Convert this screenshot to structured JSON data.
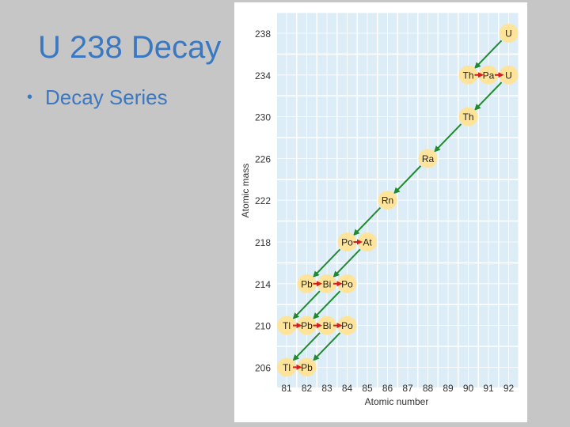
{
  "slide": {
    "title": "U 238 Decay",
    "bullets": [
      "Decay Series"
    ]
  },
  "colors": {
    "title": "#3a78c2",
    "grid_fill": "#dcedf7",
    "node_fill": "#fde49a",
    "alpha_arrow": "#1f8a2e",
    "beta_arrow": "#d42020"
  },
  "chart_data": {
    "type": "diagram",
    "xlabel": "Atomic number",
    "ylabel": "Atomic mass",
    "x_ticks": [
      "81",
      "82",
      "83",
      "84",
      "85",
      "86",
      "87",
      "88",
      "89",
      "90",
      "91",
      "92"
    ],
    "y_ticks": [
      "238",
      "234",
      "230",
      "226",
      "222",
      "218",
      "214",
      "210",
      "206"
    ],
    "grid": true,
    "nodes": [
      {
        "z": 92,
        "a": 238,
        "label": "U"
      },
      {
        "z": 90,
        "a": 234,
        "label": "Th"
      },
      {
        "z": 91,
        "a": 234,
        "label": "Pa"
      },
      {
        "z": 92,
        "a": 234,
        "label": "U"
      },
      {
        "z": 90,
        "a": 230,
        "label": "Th"
      },
      {
        "z": 88,
        "a": 226,
        "label": "Ra"
      },
      {
        "z": 86,
        "a": 222,
        "label": "Rn"
      },
      {
        "z": 84,
        "a": 218,
        "label": "Po"
      },
      {
        "z": 85,
        "a": 218,
        "label": "At"
      },
      {
        "z": 82,
        "a": 214,
        "label": "Pb"
      },
      {
        "z": 83,
        "a": 214,
        "label": "Bi"
      },
      {
        "z": 84,
        "a": 214,
        "label": "Po"
      },
      {
        "z": 81,
        "a": 210,
        "label": "Tl"
      },
      {
        "z": 82,
        "a": 210,
        "label": "Pb"
      },
      {
        "z": 83,
        "a": 210,
        "label": "Bi"
      },
      {
        "z": 84,
        "a": 210,
        "label": "Po"
      },
      {
        "z": 81,
        "a": 206,
        "label": "Tl"
      },
      {
        "z": 82,
        "a": 206,
        "label": "Pb"
      }
    ],
    "alpha_decays": [
      {
        "from": [
          92,
          238
        ],
        "to": [
          90,
          234
        ]
      },
      {
        "from": [
          92,
          234
        ],
        "to": [
          90,
          230
        ]
      },
      {
        "from": [
          90,
          230
        ],
        "to": [
          88,
          226
        ]
      },
      {
        "from": [
          88,
          226
        ],
        "to": [
          86,
          222
        ]
      },
      {
        "from": [
          86,
          222
        ],
        "to": [
          84,
          218
        ]
      },
      {
        "from": [
          84,
          218
        ],
        "to": [
          82,
          214
        ]
      },
      {
        "from": [
          85,
          218
        ],
        "to": [
          83,
          214
        ]
      },
      {
        "from": [
          83,
          214
        ],
        "to": [
          81,
          210
        ]
      },
      {
        "from": [
          84,
          214
        ],
        "to": [
          82,
          210
        ]
      },
      {
        "from": [
          83,
          210
        ],
        "to": [
          81,
          206
        ]
      },
      {
        "from": [
          84,
          210
        ],
        "to": [
          82,
          206
        ]
      }
    ],
    "beta_decays": [
      {
        "from": [
          90,
          234
        ],
        "to": [
          91,
          234
        ]
      },
      {
        "from": [
          91,
          234
        ],
        "to": [
          92,
          234
        ]
      },
      {
        "from": [
          84,
          218
        ],
        "to": [
          85,
          218
        ]
      },
      {
        "from": [
          82,
          214
        ],
        "to": [
          83,
          214
        ]
      },
      {
        "from": [
          83,
          214
        ],
        "to": [
          84,
          214
        ]
      },
      {
        "from": [
          81,
          210
        ],
        "to": [
          82,
          210
        ]
      },
      {
        "from": [
          82,
          210
        ],
        "to": [
          83,
          210
        ]
      },
      {
        "from": [
          83,
          210
        ],
        "to": [
          84,
          210
        ]
      },
      {
        "from": [
          81,
          206
        ],
        "to": [
          82,
          206
        ]
      }
    ]
  }
}
